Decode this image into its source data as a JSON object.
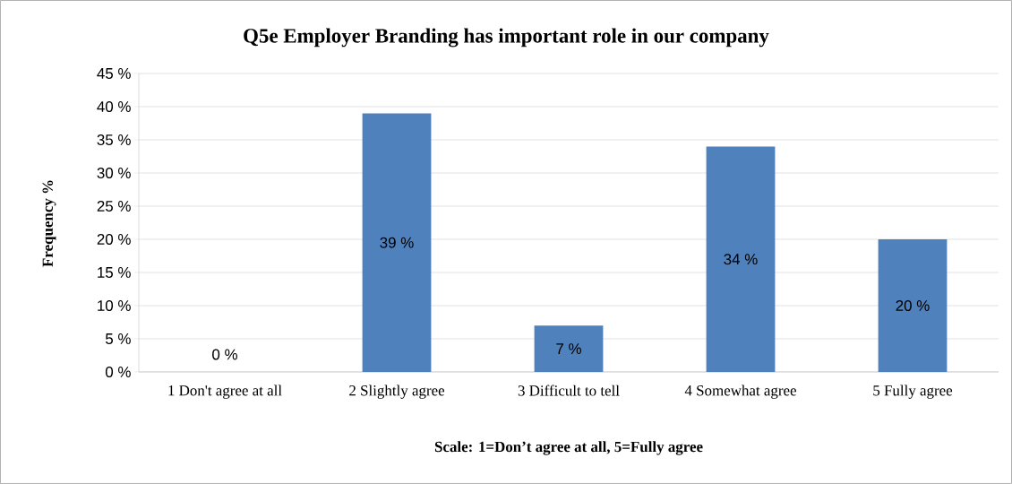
{
  "chart_data": {
    "type": "bar",
    "title": "Q5e Employer Branding has important role in our company",
    "categories": [
      "1 Don't agree at all",
      "2 Slightly agree",
      "3 Difficult to tell",
      "4 Somewhat agree",
      "5 Fully agree"
    ],
    "values": [
      0,
      39,
      7,
      34,
      20
    ],
    "value_labels": [
      "0 %",
      "39 %",
      "7 %",
      "34 %",
      "20 %"
    ],
    "color": "#4f81bd",
    "xlabel": "Scale: 1=Don’t agree at all, 5=Fully agree",
    "ylabel": "Frequency %",
    "ylim": [
      0,
      45
    ],
    "yticks": [
      {
        "value": 0,
        "label": "0 %"
      },
      {
        "value": 5,
        "label": "5 %"
      },
      {
        "value": 10,
        "label": "10 %"
      },
      {
        "value": 15,
        "label": "15 %"
      },
      {
        "value": 20,
        "label": "20 %"
      },
      {
        "value": 25,
        "label": "25 %"
      },
      {
        "value": 30,
        "label": "30 %"
      },
      {
        "value": 35,
        "label": "35 %"
      },
      {
        "value": 40,
        "label": "40 %"
      },
      {
        "value": 45,
        "label": "45 %"
      }
    ],
    "grid": "y"
  }
}
